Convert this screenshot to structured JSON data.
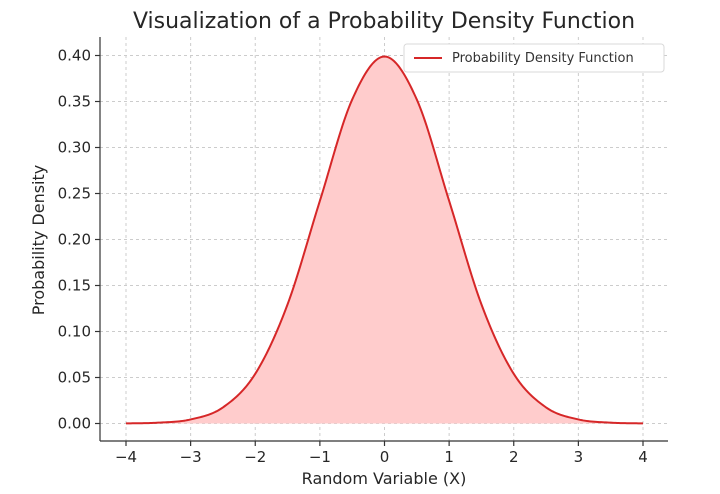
{
  "chart_data": {
    "type": "area",
    "title": "Visualization of a Probability Density Function",
    "xlabel": "Random Variable (X)",
    "ylabel": "Probability Density",
    "xlim": [
      -4,
      4
    ],
    "ylim": [
      0,
      0.42
    ],
    "x_ticks": [
      -4,
      -3,
      -2,
      -1,
      0,
      1,
      2,
      3,
      4
    ],
    "x_tick_labels": [
      "−4",
      "−3",
      "−2",
      "−1",
      "0",
      "1",
      "2",
      "3",
      "4"
    ],
    "y_ticks": [
      0.0,
      0.05,
      0.1,
      0.15,
      0.2,
      0.25,
      0.3,
      0.35,
      0.4
    ],
    "y_tick_labels": [
      "0.00",
      "0.05",
      "0.10",
      "0.15",
      "0.20",
      "0.25",
      "0.30",
      "0.35",
      "0.40"
    ],
    "grid": true,
    "legend_position": "top-right",
    "series": [
      {
        "name": "Probability Density Function",
        "color": "#d62728",
        "fill_color": "#ffcccc",
        "x": [
          -4.0,
          -3.5,
          -3.0,
          -2.5,
          -2.0,
          -1.5,
          -1.0,
          -0.5,
          0.0,
          0.5,
          1.0,
          1.5,
          2.0,
          2.5,
          3.0,
          3.5,
          4.0
        ],
        "y": [
          0.0001,
          0.0009,
          0.0044,
          0.0175,
          0.054,
          0.1295,
          0.242,
          0.3521,
          0.3989,
          0.3521,
          0.242,
          0.1295,
          0.054,
          0.0175,
          0.0044,
          0.0009,
          0.0001
        ]
      }
    ]
  }
}
